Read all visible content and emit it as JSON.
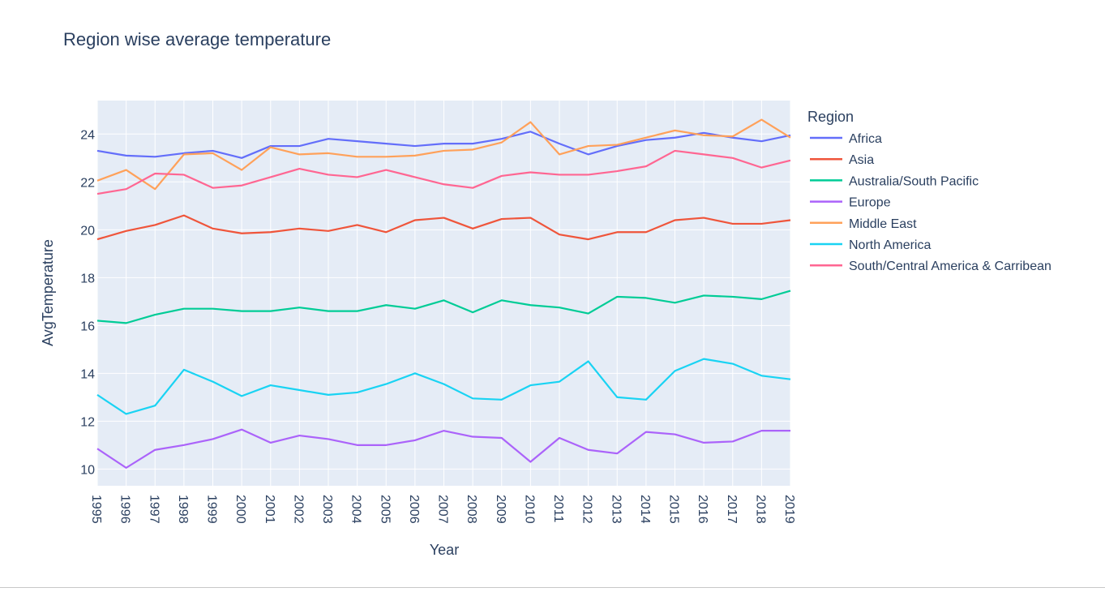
{
  "chart_data": {
    "type": "line",
    "title": "Region wise average temperature",
    "xlabel": "Year",
    "ylabel": "AvgTemperature",
    "legend_title": "Region",
    "legend_position": "right",
    "grid": true,
    "xlim": [
      1995,
      2019
    ],
    "ylim": [
      9.3,
      25.4
    ],
    "x": [
      "1995",
      "1996",
      "1997",
      "1998",
      "1999",
      "2000",
      "2001",
      "2002",
      "2003",
      "2004",
      "2005",
      "2006",
      "2007",
      "2008",
      "2009",
      "2010",
      "2011",
      "2012",
      "2013",
      "2014",
      "2015",
      "2016",
      "2017",
      "2018",
      "2019"
    ],
    "yticks": [
      "10",
      "12",
      "14",
      "16",
      "18",
      "20",
      "22",
      "24"
    ],
    "series": [
      {
        "name": "Africa",
        "color": "#636efa",
        "values": [
          23.3,
          23.1,
          23.05,
          23.2,
          23.3,
          23.0,
          23.5,
          23.5,
          23.8,
          23.7,
          23.6,
          23.5,
          23.6,
          23.6,
          23.8,
          24.1,
          23.6,
          23.15,
          23.5,
          23.75,
          23.85,
          24.05,
          23.85,
          23.7,
          23.95
        ]
      },
      {
        "name": "Asia",
        "color": "#ef553b",
        "values": [
          19.6,
          19.95,
          20.2,
          20.6,
          20.05,
          19.85,
          19.9,
          20.05,
          19.95,
          20.2,
          19.9,
          20.4,
          20.5,
          20.05,
          20.45,
          20.5,
          19.8,
          19.6,
          19.9,
          19.9,
          20.4,
          20.5,
          20.25,
          20.25,
          20.4
        ]
      },
      {
        "name": "Australia/South Pacific",
        "color": "#00cc96",
        "values": [
          16.2,
          16.1,
          16.45,
          16.7,
          16.7,
          16.6,
          16.6,
          16.75,
          16.6,
          16.6,
          16.85,
          16.7,
          17.05,
          16.55,
          17.05,
          16.85,
          16.75,
          16.5,
          17.2,
          17.15,
          16.95,
          17.25,
          17.2,
          17.1,
          17.45
        ]
      },
      {
        "name": "Europe",
        "color": "#ab63fa",
        "values": [
          10.85,
          10.05,
          10.8,
          11.0,
          11.25,
          11.65,
          11.1,
          11.4,
          11.25,
          11.0,
          11.0,
          11.2,
          11.6,
          11.35,
          11.3,
          10.3,
          11.3,
          10.8,
          10.65,
          11.55,
          11.45,
          11.1,
          11.15,
          11.6,
          11.6
        ]
      },
      {
        "name": "Middle East",
        "color": "#ffa15a",
        "values": [
          22.05,
          22.5,
          21.7,
          23.15,
          23.2,
          22.5,
          23.45,
          23.15,
          23.2,
          23.05,
          23.05,
          23.1,
          23.3,
          23.35,
          23.65,
          24.5,
          23.15,
          23.5,
          23.55,
          23.85,
          24.15,
          23.95,
          23.9,
          24.6,
          23.85
        ]
      },
      {
        "name": "North America",
        "color": "#19d3f3",
        "values": [
          13.1,
          12.3,
          12.65,
          14.15,
          13.65,
          13.05,
          13.5,
          13.3,
          13.1,
          13.2,
          13.55,
          14.0,
          13.55,
          12.95,
          12.9,
          13.5,
          13.65,
          14.5,
          13.0,
          12.9,
          14.1,
          14.6,
          14.4,
          13.9,
          13.75
        ]
      },
      {
        "name": "South/Central America & Carribean",
        "color": "#ff6692",
        "values": [
          21.5,
          21.7,
          22.35,
          22.3,
          21.75,
          21.85,
          22.2,
          22.55,
          22.3,
          22.2,
          22.5,
          22.2,
          21.9,
          21.75,
          22.25,
          22.4,
          22.3,
          22.3,
          22.45,
          22.65,
          23.3,
          23.15,
          23.0,
          22.6,
          22.9
        ]
      }
    ]
  }
}
